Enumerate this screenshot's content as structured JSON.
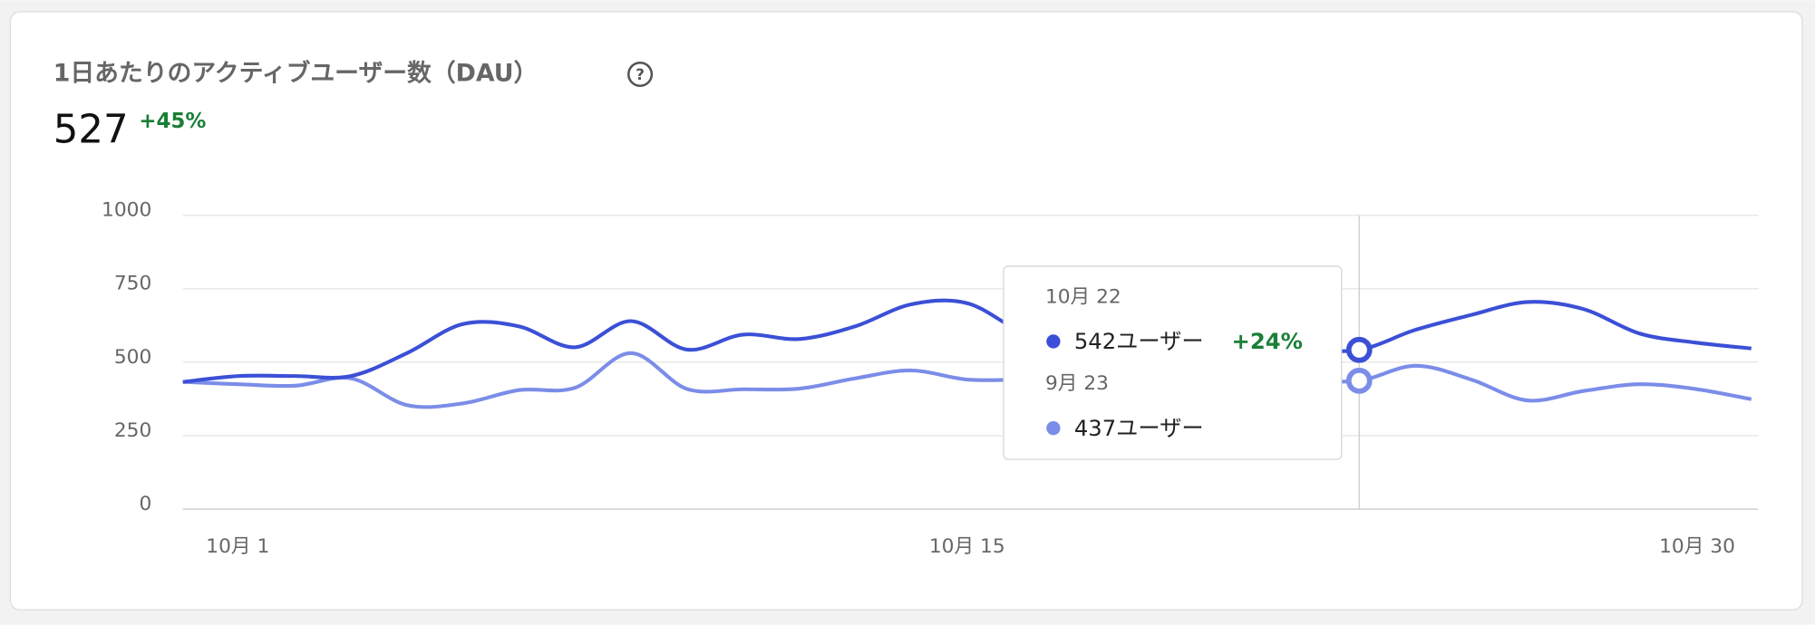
{
  "chart_data": {
    "type": "line",
    "title": "1日あたりのアクティブユーザー数（DAU）",
    "metric": "527",
    "change": "+45%",
    "x": [
      1,
      2,
      3,
      4,
      5,
      6,
      7,
      8,
      9,
      10,
      11,
      12,
      13,
      14,
      15,
      16,
      17,
      18,
      19,
      20,
      21,
      22,
      23,
      24,
      25,
      26,
      27,
      28,
      29
    ],
    "xlim": [
      1,
      29
    ],
    "xticks": [
      {
        "value": 1,
        "label": "10月 1"
      },
      {
        "value": 15,
        "label": "10月 15"
      },
      {
        "value": 30,
        "label": "10月 30"
      }
    ],
    "ylim": [
      0,
      1000
    ],
    "yticks": [
      0,
      250,
      500,
      750,
      1000
    ],
    "grid": true,
    "series": [
      {
        "color": "#3b50d6",
        "values": [
          433,
          453,
          453,
          453,
          531,
          630,
          622,
          551,
          640,
          543,
          594,
          579,
          622,
          697,
          701,
          602,
          560,
          570,
          560,
          550,
          545,
          542,
          610,
          661,
          705,
          681,
          598,
          567,
          547
        ]
      },
      {
        "color": "#7b8de8",
        "values": [
          433,
          425,
          420,
          445,
          354,
          360,
          405,
          413,
          531,
          409,
          408,
          410,
          445,
          472,
          441,
          441,
          440,
          440,
          440,
          440,
          440,
          437,
          488,
          441,
          370,
          402,
          425,
          409,
          374
        ]
      }
    ],
    "tooltip": {
      "x": 22,
      "date": "10月 22",
      "current": "542ユーザー",
      "change": "+24%",
      "compare_date": "9月 23",
      "compare": "437ユーザー"
    }
  }
}
